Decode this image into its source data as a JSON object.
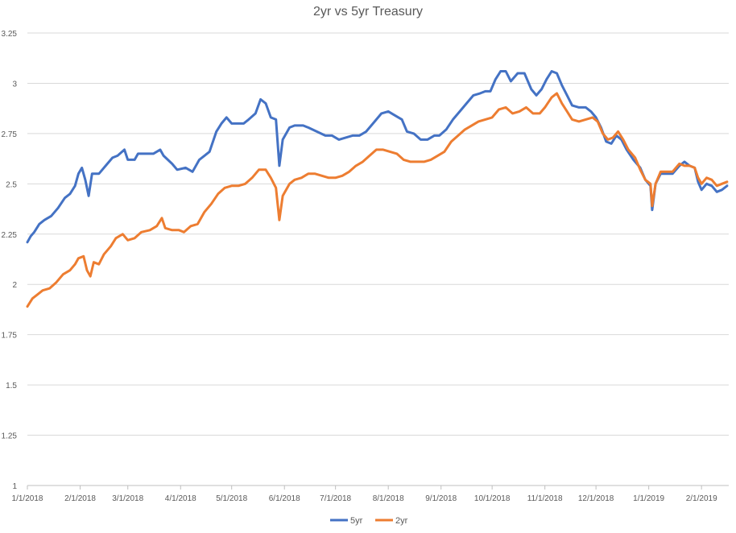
{
  "chart_data": {
    "type": "line",
    "title": "2yr vs 5yr Treasury",
    "xlabel": "",
    "ylabel": "",
    "xlim": [
      "2018-01-01",
      "2019-02-17"
    ],
    "ylim": [
      1,
      3.25
    ],
    "y_ticks": [
      "1",
      "1.25",
      "1.5",
      "1.75",
      "2",
      "2.25",
      "2.5",
      "2.75",
      "3",
      "3.25"
    ],
    "x_ticks": [
      {
        "date": "2018-01-01",
        "label": "1/1/2018"
      },
      {
        "date": "2018-02-01",
        "label": "2/1/2018"
      },
      {
        "date": "2018-03-01",
        "label": "3/1/2018"
      },
      {
        "date": "2018-04-01",
        "label": "4/1/2018"
      },
      {
        "date": "2018-05-01",
        "label": "5/1/2018"
      },
      {
        "date": "2018-06-01",
        "label": "6/1/2018"
      },
      {
        "date": "2018-07-01",
        "label": "7/1/2018"
      },
      {
        "date": "2018-08-01",
        "label": "8/1/2018"
      },
      {
        "date": "2018-09-01",
        "label": "9/1/2018"
      },
      {
        "date": "2018-10-01",
        "label": "10/1/2018"
      },
      {
        "date": "2018-11-01",
        "label": "11/1/2018"
      },
      {
        "date": "2018-12-01",
        "label": "12/1/2018"
      },
      {
        "date": "2019-01-01",
        "label": "1/1/2019"
      },
      {
        "date": "2019-02-01",
        "label": "2/1/2019"
      }
    ],
    "grid": true,
    "legend_position": "bottom",
    "series": [
      {
        "name": "5yr",
        "color": "#4472c4",
        "points": [
          [
            "2018-01-01",
            2.21
          ],
          [
            "2018-01-03",
            2.24
          ],
          [
            "2018-01-05",
            2.26
          ],
          [
            "2018-01-08",
            2.3
          ],
          [
            "2018-01-11",
            2.32
          ],
          [
            "2018-01-15",
            2.34
          ],
          [
            "2018-01-19",
            2.38
          ],
          [
            "2018-01-23",
            2.43
          ],
          [
            "2018-01-26",
            2.45
          ],
          [
            "2018-01-29",
            2.49
          ],
          [
            "2018-01-31",
            2.55
          ],
          [
            "2018-02-02",
            2.58
          ],
          [
            "2018-02-04",
            2.52
          ],
          [
            "2018-02-06",
            2.44
          ],
          [
            "2018-02-08",
            2.55
          ],
          [
            "2018-02-12",
            2.55
          ],
          [
            "2018-02-16",
            2.59
          ],
          [
            "2018-02-20",
            2.63
          ],
          [
            "2018-02-23",
            2.64
          ],
          [
            "2018-02-27",
            2.67
          ],
          [
            "2018-03-01",
            2.62
          ],
          [
            "2018-03-05",
            2.62
          ],
          [
            "2018-03-07",
            2.65
          ],
          [
            "2018-03-12",
            2.65
          ],
          [
            "2018-03-16",
            2.65
          ],
          [
            "2018-03-20",
            2.67
          ],
          [
            "2018-03-22",
            2.64
          ],
          [
            "2018-03-27",
            2.6
          ],
          [
            "2018-03-30",
            2.57
          ],
          [
            "2018-04-04",
            2.58
          ],
          [
            "2018-04-08",
            2.56
          ],
          [
            "2018-04-12",
            2.62
          ],
          [
            "2018-04-15",
            2.64
          ],
          [
            "2018-04-18",
            2.66
          ],
          [
            "2018-04-22",
            2.76
          ],
          [
            "2018-04-25",
            2.8
          ],
          [
            "2018-04-28",
            2.83
          ],
          [
            "2018-05-01",
            2.8
          ],
          [
            "2018-05-04",
            2.8
          ],
          [
            "2018-05-08",
            2.8
          ],
          [
            "2018-05-11",
            2.82
          ],
          [
            "2018-05-15",
            2.85
          ],
          [
            "2018-05-18",
            2.92
          ],
          [
            "2018-05-21",
            2.9
          ],
          [
            "2018-05-24",
            2.83
          ],
          [
            "2018-05-27",
            2.82
          ],
          [
            "2018-05-29",
            2.59
          ],
          [
            "2018-05-31",
            2.72
          ],
          [
            "2018-06-04",
            2.78
          ],
          [
            "2018-06-07",
            2.79
          ],
          [
            "2018-06-12",
            2.79
          ],
          [
            "2018-06-15",
            2.78
          ],
          [
            "2018-06-20",
            2.76
          ],
          [
            "2018-06-25",
            2.74
          ],
          [
            "2018-06-29",
            2.74
          ],
          [
            "2018-07-03",
            2.72
          ],
          [
            "2018-07-07",
            2.73
          ],
          [
            "2018-07-11",
            2.74
          ],
          [
            "2018-07-15",
            2.74
          ],
          [
            "2018-07-19",
            2.76
          ],
          [
            "2018-07-23",
            2.8
          ],
          [
            "2018-07-28",
            2.85
          ],
          [
            "2018-08-01",
            2.86
          ],
          [
            "2018-08-05",
            2.84
          ],
          [
            "2018-08-09",
            2.82
          ],
          [
            "2018-08-12",
            2.76
          ],
          [
            "2018-08-16",
            2.75
          ],
          [
            "2018-08-20",
            2.72
          ],
          [
            "2018-08-24",
            2.72
          ],
          [
            "2018-08-28",
            2.74
          ],
          [
            "2018-08-31",
            2.74
          ],
          [
            "2018-09-04",
            2.77
          ],
          [
            "2018-09-08",
            2.82
          ],
          [
            "2018-09-12",
            2.86
          ],
          [
            "2018-09-16",
            2.9
          ],
          [
            "2018-09-20",
            2.94
          ],
          [
            "2018-09-24",
            2.95
          ],
          [
            "2018-09-27",
            2.96
          ],
          [
            "2018-09-30",
            2.96
          ],
          [
            "2018-10-03",
            3.02
          ],
          [
            "2018-10-06",
            3.06
          ],
          [
            "2018-10-09",
            3.06
          ],
          [
            "2018-10-12",
            3.01
          ],
          [
            "2018-10-16",
            3.05
          ],
          [
            "2018-10-20",
            3.05
          ],
          [
            "2018-10-24",
            2.97
          ],
          [
            "2018-10-27",
            2.94
          ],
          [
            "2018-10-30",
            2.97
          ],
          [
            "2018-11-02",
            3.02
          ],
          [
            "2018-11-05",
            3.06
          ],
          [
            "2018-11-08",
            3.05
          ],
          [
            "2018-11-11",
            2.99
          ],
          [
            "2018-11-14",
            2.94
          ],
          [
            "2018-11-17",
            2.89
          ],
          [
            "2018-11-21",
            2.88
          ],
          [
            "2018-11-25",
            2.88
          ],
          [
            "2018-11-28",
            2.86
          ],
          [
            "2018-12-01",
            2.83
          ],
          [
            "2018-12-04",
            2.78
          ],
          [
            "2018-12-07",
            2.71
          ],
          [
            "2018-12-10",
            2.7
          ],
          [
            "2018-12-13",
            2.74
          ],
          [
            "2018-12-16",
            2.72
          ],
          [
            "2018-12-19",
            2.67
          ],
          [
            "2018-12-23",
            2.62
          ],
          [
            "2018-12-27",
            2.58
          ],
          [
            "2018-12-30",
            2.52
          ],
          [
            "2019-01-02",
            2.49
          ],
          [
            "2019-01-03",
            2.37
          ],
          [
            "2019-01-05",
            2.5
          ],
          [
            "2019-01-08",
            2.55
          ],
          [
            "2019-01-11",
            2.55
          ],
          [
            "2019-01-15",
            2.55
          ],
          [
            "2019-01-19",
            2.59
          ],
          [
            "2019-01-22",
            2.61
          ],
          [
            "2019-01-25",
            2.59
          ],
          [
            "2019-01-28",
            2.58
          ],
          [
            "2019-01-30",
            2.51
          ],
          [
            "2019-02-01",
            2.47
          ],
          [
            "2019-02-04",
            2.5
          ],
          [
            "2019-02-07",
            2.49
          ],
          [
            "2019-02-10",
            2.46
          ],
          [
            "2019-02-13",
            2.47
          ],
          [
            "2019-02-16",
            2.49
          ]
        ]
      },
      {
        "name": "2yr",
        "color": "#ed7d31",
        "points": [
          [
            "2018-01-01",
            1.89
          ],
          [
            "2018-01-04",
            1.93
          ],
          [
            "2018-01-07",
            1.95
          ],
          [
            "2018-01-10",
            1.97
          ],
          [
            "2018-01-14",
            1.98
          ],
          [
            "2018-01-18",
            2.01
          ],
          [
            "2018-01-22",
            2.05
          ],
          [
            "2018-01-26",
            2.07
          ],
          [
            "2018-01-29",
            2.1
          ],
          [
            "2018-01-31",
            2.13
          ],
          [
            "2018-02-03",
            2.14
          ],
          [
            "2018-02-05",
            2.07
          ],
          [
            "2018-02-07",
            2.04
          ],
          [
            "2018-02-09",
            2.11
          ],
          [
            "2018-02-12",
            2.1
          ],
          [
            "2018-02-15",
            2.15
          ],
          [
            "2018-02-19",
            2.19
          ],
          [
            "2018-02-22",
            2.23
          ],
          [
            "2018-02-26",
            2.25
          ],
          [
            "2018-03-01",
            2.22
          ],
          [
            "2018-03-05",
            2.23
          ],
          [
            "2018-03-09",
            2.26
          ],
          [
            "2018-03-14",
            2.27
          ],
          [
            "2018-03-18",
            2.29
          ],
          [
            "2018-03-21",
            2.33
          ],
          [
            "2018-03-23",
            2.28
          ],
          [
            "2018-03-27",
            2.27
          ],
          [
            "2018-03-31",
            2.27
          ],
          [
            "2018-04-03",
            2.26
          ],
          [
            "2018-04-07",
            2.29
          ],
          [
            "2018-04-11",
            2.3
          ],
          [
            "2018-04-15",
            2.36
          ],
          [
            "2018-04-19",
            2.4
          ],
          [
            "2018-04-23",
            2.45
          ],
          [
            "2018-04-27",
            2.48
          ],
          [
            "2018-05-01",
            2.49
          ],
          [
            "2018-05-05",
            2.49
          ],
          [
            "2018-05-09",
            2.5
          ],
          [
            "2018-05-13",
            2.53
          ],
          [
            "2018-05-17",
            2.57
          ],
          [
            "2018-05-21",
            2.57
          ],
          [
            "2018-05-24",
            2.53
          ],
          [
            "2018-05-27",
            2.48
          ],
          [
            "2018-05-29",
            2.32
          ],
          [
            "2018-05-31",
            2.44
          ],
          [
            "2018-06-04",
            2.5
          ],
          [
            "2018-06-07",
            2.52
          ],
          [
            "2018-06-11",
            2.53
          ],
          [
            "2018-06-15",
            2.55
          ],
          [
            "2018-06-19",
            2.55
          ],
          [
            "2018-06-23",
            2.54
          ],
          [
            "2018-06-27",
            2.53
          ],
          [
            "2018-07-01",
            2.53
          ],
          [
            "2018-07-05",
            2.54
          ],
          [
            "2018-07-09",
            2.56
          ],
          [
            "2018-07-13",
            2.59
          ],
          [
            "2018-07-17",
            2.61
          ],
          [
            "2018-07-21",
            2.64
          ],
          [
            "2018-07-25",
            2.67
          ],
          [
            "2018-07-29",
            2.67
          ],
          [
            "2018-08-02",
            2.66
          ],
          [
            "2018-08-06",
            2.65
          ],
          [
            "2018-08-10",
            2.62
          ],
          [
            "2018-08-14",
            2.61
          ],
          [
            "2018-08-18",
            2.61
          ],
          [
            "2018-08-22",
            2.61
          ],
          [
            "2018-08-26",
            2.62
          ],
          [
            "2018-08-30",
            2.64
          ],
          [
            "2018-09-03",
            2.66
          ],
          [
            "2018-09-07",
            2.71
          ],
          [
            "2018-09-11",
            2.74
          ],
          [
            "2018-09-15",
            2.77
          ],
          [
            "2018-09-19",
            2.79
          ],
          [
            "2018-09-23",
            2.81
          ],
          [
            "2018-09-27",
            2.82
          ],
          [
            "2018-10-01",
            2.83
          ],
          [
            "2018-10-05",
            2.87
          ],
          [
            "2018-10-09",
            2.88
          ],
          [
            "2018-10-13",
            2.85
          ],
          [
            "2018-10-17",
            2.86
          ],
          [
            "2018-10-21",
            2.88
          ],
          [
            "2018-10-25",
            2.85
          ],
          [
            "2018-10-29",
            2.85
          ],
          [
            "2018-11-01",
            2.88
          ],
          [
            "2018-11-05",
            2.93
          ],
          [
            "2018-11-08",
            2.95
          ],
          [
            "2018-11-11",
            2.9
          ],
          [
            "2018-11-14",
            2.86
          ],
          [
            "2018-11-17",
            2.82
          ],
          [
            "2018-11-21",
            2.81
          ],
          [
            "2018-11-25",
            2.82
          ],
          [
            "2018-11-29",
            2.83
          ],
          [
            "2018-12-02",
            2.81
          ],
          [
            "2018-12-05",
            2.75
          ],
          [
            "2018-12-08",
            2.72
          ],
          [
            "2018-12-11",
            2.73
          ],
          [
            "2018-12-14",
            2.76
          ],
          [
            "2018-12-17",
            2.72
          ],
          [
            "2018-12-20",
            2.67
          ],
          [
            "2018-12-24",
            2.63
          ],
          [
            "2018-12-27",
            2.57
          ],
          [
            "2018-12-30",
            2.52
          ],
          [
            "2019-01-02",
            2.5
          ],
          [
            "2019-01-03",
            2.39
          ],
          [
            "2019-01-05",
            2.5
          ],
          [
            "2019-01-08",
            2.56
          ],
          [
            "2019-01-11",
            2.56
          ],
          [
            "2019-01-15",
            2.56
          ],
          [
            "2019-01-19",
            2.6
          ],
          [
            "2019-01-22",
            2.59
          ],
          [
            "2019-01-25",
            2.59
          ],
          [
            "2019-01-28",
            2.58
          ],
          [
            "2019-01-30",
            2.53
          ],
          [
            "2019-02-01",
            2.5
          ],
          [
            "2019-02-04",
            2.53
          ],
          [
            "2019-02-07",
            2.52
          ],
          [
            "2019-02-10",
            2.49
          ],
          [
            "2019-02-13",
            2.5
          ],
          [
            "2019-02-16",
            2.51
          ]
        ]
      }
    ]
  }
}
